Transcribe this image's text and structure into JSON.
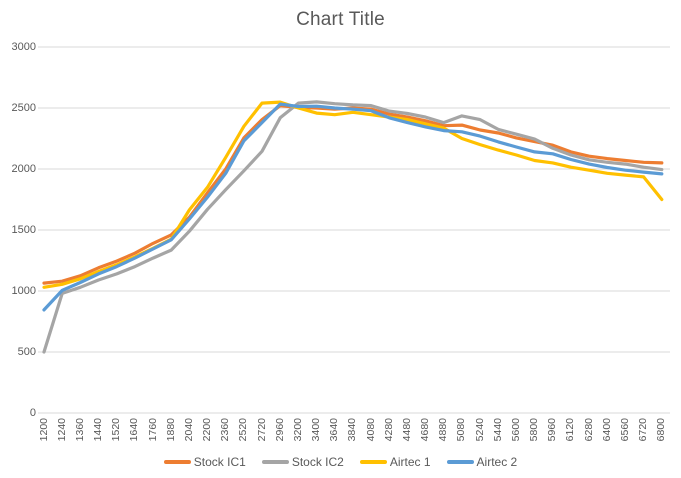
{
  "window": {
    "background": "#FFFFFF"
  },
  "chart_data": {
    "type": "line",
    "title": "Chart Title",
    "title_color": "#595959",
    "grid": true,
    "gridline_color": "#D9D9D9",
    "axis_label_color": "#595959",
    "legend_position": "bottom",
    "ylim": [
      0,
      3000
    ],
    "y_ticks": [
      0,
      500,
      1000,
      1500,
      2000,
      2500,
      3000
    ],
    "categories": [
      "1200",
      "1240",
      "1360",
      "1440",
      "1520",
      "1640",
      "1760",
      "1880",
      "2040",
      "2200",
      "2360",
      "2520",
      "2720",
      "2960",
      "3200",
      "3400",
      "3640",
      "3840",
      "4080",
      "4280",
      "4480",
      "4680",
      "4880",
      "5080",
      "5240",
      "5440",
      "5600",
      "5800",
      "5960",
      "6120",
      "6280",
      "6400",
      "6560",
      "6720",
      "6800"
    ],
    "series": [
      {
        "name": "Stock IC1",
        "color": "#ED7D31",
        "values": [
          1065,
          1080,
          1125,
          1190,
          1245,
          1310,
          1390,
          1460,
          1605,
          1805,
          2000,
          2255,
          2405,
          2520,
          2505,
          2500,
          2490,
          2500,
          2490,
          2450,
          2425,
          2395,
          2355,
          2360,
          2320,
          2295,
          2255,
          2225,
          2195,
          2140,
          2105,
          2085,
          2070,
          2055,
          2050
        ]
      },
      {
        "name": "Stock IC2",
        "color": "#A5A5A5",
        "values": [
          500,
          980,
          1030,
          1090,
          1140,
          1200,
          1270,
          1335,
          1490,
          1670,
          1830,
          1985,
          2145,
          2420,
          2540,
          2550,
          2535,
          2525,
          2520,
          2475,
          2455,
          2425,
          2380,
          2435,
          2405,
          2325,
          2285,
          2245,
          2170,
          2115,
          2075,
          2055,
          2040,
          2015,
          1995
        ]
      },
      {
        "name": "Airtec 1",
        "color": "#FFC000",
        "values": [
          1030,
          1055,
          1100,
          1160,
          1215,
          1280,
          1350,
          1425,
          1665,
          1850,
          2095,
          2350,
          2540,
          2548,
          2500,
          2458,
          2445,
          2465,
          2445,
          2425,
          2405,
          2370,
          2335,
          2250,
          2200,
          2155,
          2115,
          2070,
          2050,
          2015,
          1990,
          1965,
          1950,
          1935,
          1750
        ]
      },
      {
        "name": "Airtec 2",
        "color": "#5B9BD5",
        "values": [
          845,
          1005,
          1070,
          1140,
          1200,
          1270,
          1345,
          1420,
          1590,
          1770,
          1965,
          2230,
          2380,
          2532,
          2512,
          2515,
          2500,
          2490,
          2478,
          2420,
          2380,
          2345,
          2315,
          2305,
          2270,
          2222,
          2180,
          2140,
          2125,
          2078,
          2040,
          2012,
          1990,
          1975,
          1960
        ]
      }
    ]
  }
}
